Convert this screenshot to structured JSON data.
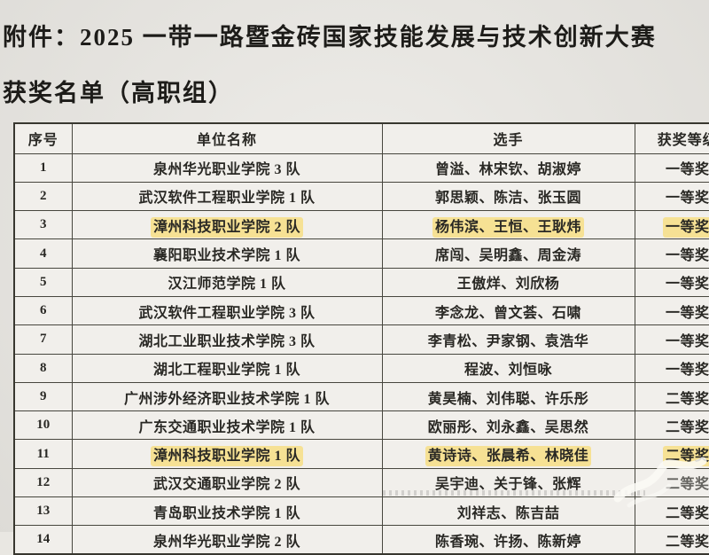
{
  "document": {
    "title_line1": "附件：2025 一带一路暨金砖国家技能发展与技术创新大赛",
    "title_line2": "获奖名单（高职组）"
  },
  "table": {
    "headers": [
      "序号",
      "单位名称",
      "选手",
      "获奖等级"
    ],
    "rows": [
      {
        "no": "1",
        "unit": "泉州华光职业学院 3 队",
        "players": "曾溢、林宋钦、胡淑婷",
        "award": "一等奖",
        "highlight": false,
        "faded": false
      },
      {
        "no": "2",
        "unit": "武汉软件工程职业学院 1 队",
        "players": "郭思颖、陈洁、张玉圆",
        "award": "一等奖",
        "highlight": false,
        "faded": false
      },
      {
        "no": "3",
        "unit": "漳州科技职业学院 2 队",
        "players": "杨伟滨、王恒、王耿炜",
        "award": "一等奖",
        "highlight": true,
        "faded": false
      },
      {
        "no": "4",
        "unit": "襄阳职业技术学院 1 队",
        "players": "席闯、吴明鑫、周金涛",
        "award": "一等奖",
        "highlight": false,
        "faded": false
      },
      {
        "no": "5",
        "unit": "汉江师范学院 1 队",
        "players": "王傲烊、刘欣杨",
        "award": "一等奖",
        "highlight": false,
        "faded": false
      },
      {
        "no": "6",
        "unit": "武汉软件工程职业学院 3 队",
        "players": "李念龙、曾文荟、石啸",
        "award": "一等奖",
        "highlight": false,
        "faded": false
      },
      {
        "no": "7",
        "unit": "湖北工业职业技术学院 3 队",
        "players": "李青松、尹家钢、袁浩华",
        "award": "一等奖",
        "highlight": false,
        "faded": false
      },
      {
        "no": "8",
        "unit": "湖北工程职业学院 1 队",
        "players": "程波、刘恒咏",
        "award": "一等奖",
        "highlight": false,
        "faded": false
      },
      {
        "no": "9",
        "unit": "广州涉外经济职业技术学院 1 队",
        "players": "黄昊楠、刘伟聪、许乐彤",
        "award": "二等奖",
        "highlight": false,
        "faded": false
      },
      {
        "no": "10",
        "unit": "广东交通职业技术学院 1 队",
        "players": "欧丽彤、刘永鑫、吴思然",
        "award": "二等奖",
        "highlight": false,
        "faded": false
      },
      {
        "no": "11",
        "unit": "漳州科技职业学院 1 队",
        "players": "黄诗诗、张晨希、林晓佳",
        "award": "二等奖",
        "highlight": true,
        "faded": false
      },
      {
        "no": "12",
        "unit": "武汉交通职业学院 2 队",
        "players": "吴宇迪、关于锋、张辉",
        "award": "二等奖",
        "highlight": false,
        "faded": true
      },
      {
        "no": "13",
        "unit": "青岛职业技术学院 1 队",
        "players": "刘祥志、陈吉喆",
        "award": "二等奖",
        "highlight": false,
        "faded": false
      },
      {
        "no": "14",
        "unit": "泉州华光职业学院 2 队",
        "players": "陈香琬、许扬、陈新婷",
        "award": "二等奖",
        "highlight": false,
        "faded": false
      }
    ]
  },
  "colors": {
    "page_bg": "#e9e7e2",
    "cell_bg": "#f1efeb",
    "border": "#47463e",
    "ink": "#292824",
    "highlight": "#f6e194"
  }
}
